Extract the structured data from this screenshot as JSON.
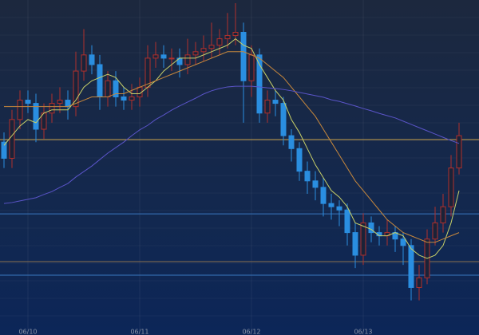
{
  "chart_data": {
    "type": "candlestick",
    "categories": [
      null,
      null,
      null,
      "06/10",
      null,
      null,
      null,
      null,
      null,
      null,
      null,
      null,
      null,
      null,
      null,
      null,
      null,
      "06/11",
      null,
      null,
      null,
      null,
      null,
      null,
      null,
      null,
      null,
      null,
      null,
      null,
      null,
      "06/12",
      null,
      null,
      null,
      null,
      null,
      null,
      null,
      null,
      null,
      null,
      null,
      null,
      null,
      "06/13",
      null,
      null,
      null,
      null,
      null,
      null,
      null,
      null,
      null,
      null,
      null,
      null
    ],
    "open": [
      56,
      51,
      63,
      69,
      68,
      60,
      65,
      68,
      69,
      67,
      78,
      83,
      80,
      70,
      75,
      70,
      69,
      70,
      73,
      82,
      83,
      82,
      82,
      80,
      83,
      84,
      85,
      86,
      88,
      89,
      90,
      75,
      83,
      65,
      69,
      68,
      58,
      54,
      47,
      44,
      42,
      37,
      36,
      35,
      28,
      21,
      31,
      28,
      27,
      28,
      26,
      24,
      11,
      14,
      26,
      31,
      36,
      48
    ],
    "high": [
      59,
      66,
      72,
      72,
      71,
      68,
      71,
      73,
      72,
      84,
      91,
      86,
      83,
      78,
      78,
      73,
      74,
      76,
      86,
      87,
      86,
      85,
      85,
      88,
      87,
      89,
      93,
      91,
      96,
      99,
      93,
      86,
      85,
      72,
      72,
      70,
      60,
      56,
      50,
      47,
      45,
      40,
      38,
      37,
      31,
      34,
      33,
      30,
      32,
      30,
      28,
      26,
      18,
      29,
      36,
      40,
      52,
      62
    ],
    "low": [
      48,
      48,
      60,
      65,
      56,
      57,
      62,
      65,
      63,
      64,
      75,
      77,
      66,
      67,
      67,
      66,
      66,
      67,
      70,
      79,
      79,
      78,
      76,
      77,
      80,
      81,
      82,
      83,
      85,
      86,
      62,
      70,
      62,
      62,
      64,
      55,
      50,
      44,
      40,
      38,
      33,
      32,
      30,
      24,
      17,
      18,
      25,
      24,
      24,
      22,
      18,
      7,
      7,
      12,
      24,
      28,
      33,
      46
    ],
    "close": [
      51,
      63,
      69,
      68,
      60,
      65,
      68,
      69,
      67,
      78,
      83,
      80,
      70,
      75,
      70,
      69,
      70,
      73,
      82,
      83,
      82,
      82,
      80,
      83,
      84,
      85,
      86,
      88,
      89,
      90,
      75,
      83,
      65,
      69,
      68,
      58,
      54,
      47,
      44,
      42,
      37,
      36,
      35,
      28,
      21,
      31,
      28,
      27,
      28,
      26,
      24,
      11,
      14,
      26,
      31,
      36,
      48,
      58
    ],
    "up_color": "#b0302c",
    "down_color": "#2a8ee0",
    "series": [
      {
        "color": "#c8d068",
        "values": [
          55,
          58,
          61,
          63,
          62,
          65,
          66,
          66,
          66,
          69,
          73,
          75,
          76,
          77,
          76,
          73,
          71,
          71,
          73,
          75,
          78,
          80,
          82,
          82,
          82,
          83,
          84,
          85,
          86,
          88,
          86,
          85,
          80,
          76,
          72,
          69,
          63,
          59,
          54,
          49,
          45,
          41,
          39,
          36,
          31,
          30,
          29,
          27,
          27,
          28,
          27,
          23,
          21,
          20,
          21,
          24,
          31,
          41
        ]
      },
      {
        "color": "#c8883c",
        "values": [
          67,
          67,
          67,
          67,
          67,
          67,
          67,
          67,
          67,
          68,
          69,
          70,
          70,
          70,
          71,
          71,
          72,
          73,
          74,
          75,
          76,
          77,
          78,
          79,
          80,
          81,
          82,
          83,
          84,
          84,
          84,
          83,
          82,
          80,
          78,
          76,
          73,
          70,
          67,
          64,
          60,
          56,
          52,
          48,
          44,
          41,
          38,
          35,
          32,
          30,
          28,
          27,
          26,
          25,
          25,
          26,
          27,
          28
        ]
      },
      {
        "color": "#5a54c8",
        "values": [
          37,
          37.3,
          37.8,
          38.3,
          38.8,
          39.8,
          40.7,
          42,
          43.2,
          45.2,
          46.9,
          48.6,
          50.6,
          52.6,
          54.3,
          56,
          58,
          59.8,
          61.2,
          63,
          64.4,
          65.9,
          67.2,
          68.4,
          69.6,
          70.9,
          71.9,
          72.6,
          73.1,
          73.3,
          73.3,
          73.3,
          73.1,
          72.8,
          72.6,
          72.3,
          71.9,
          71.4,
          70.9,
          70.4,
          69.9,
          69.1,
          68.6,
          67.9,
          67.2,
          66.4,
          65.7,
          64.9,
          64.2,
          63.5,
          62.5,
          61.5,
          60.5,
          59.5,
          58.5,
          57.5,
          56.5,
          55.6
        ]
      }
    ],
    "levels": [
      {
        "value": 56.8,
        "color": "#c8a048"
      },
      {
        "value": 33.8,
        "color": "#3a78c0"
      },
      {
        "value": 19,
        "color": "#8a7050"
      },
      {
        "value": 14.8,
        "color": "#3a78c0"
      }
    ],
    "ylim": [
      0,
      100
    ]
  }
}
